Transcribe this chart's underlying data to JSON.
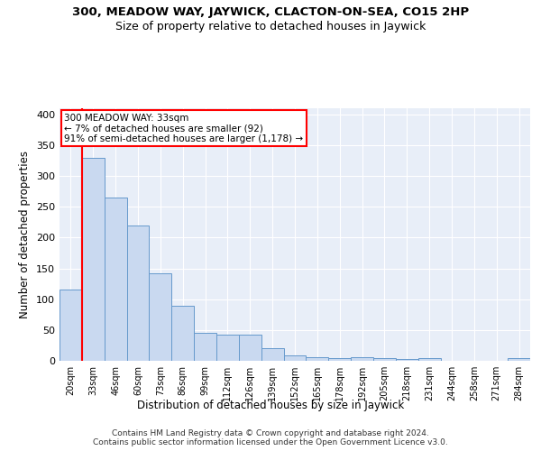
{
  "title1": "300, MEADOW WAY, JAYWICK, CLACTON-ON-SEA, CO15 2HP",
  "title2": "Size of property relative to detached houses in Jaywick",
  "xlabel": "Distribution of detached houses by size in Jaywick",
  "ylabel": "Number of detached properties",
  "categories": [
    "20sqm",
    "33sqm",
    "46sqm",
    "60sqm",
    "73sqm",
    "86sqm",
    "99sqm",
    "112sqm",
    "126sqm",
    "139sqm",
    "152sqm",
    "165sqm",
    "178sqm",
    "192sqm",
    "205sqm",
    "218sqm",
    "231sqm",
    "244sqm",
    "258sqm",
    "271sqm",
    "284sqm"
  ],
  "values": [
    115,
    330,
    265,
    220,
    142,
    90,
    45,
    42,
    42,
    20,
    9,
    6,
    5,
    6,
    5,
    3,
    4,
    0,
    0,
    0,
    4
  ],
  "bar_color": "#c9d9f0",
  "bar_edge_color": "#6699cc",
  "red_line_index": 1,
  "annotation_text": "300 MEADOW WAY: 33sqm\n← 7% of detached houses are smaller (92)\n91% of semi-detached houses are larger (1,178) →",
  "annotation_box_color": "white",
  "annotation_box_edge_color": "red",
  "ylim": [
    0,
    410
  ],
  "yticks": [
    0,
    50,
    100,
    150,
    200,
    250,
    300,
    350,
    400
  ],
  "footer": "Contains HM Land Registry data © Crown copyright and database right 2024.\nContains public sector information licensed under the Open Government Licence v3.0.",
  "background_color": "#e8eef8",
  "grid_color": "white",
  "title1_fontsize": 9.5,
  "title2_fontsize": 9,
  "ylabel_fontsize": 8.5,
  "xlabel_fontsize": 8.5,
  "tick_fontsize": 7,
  "footer_fontsize": 6.5
}
